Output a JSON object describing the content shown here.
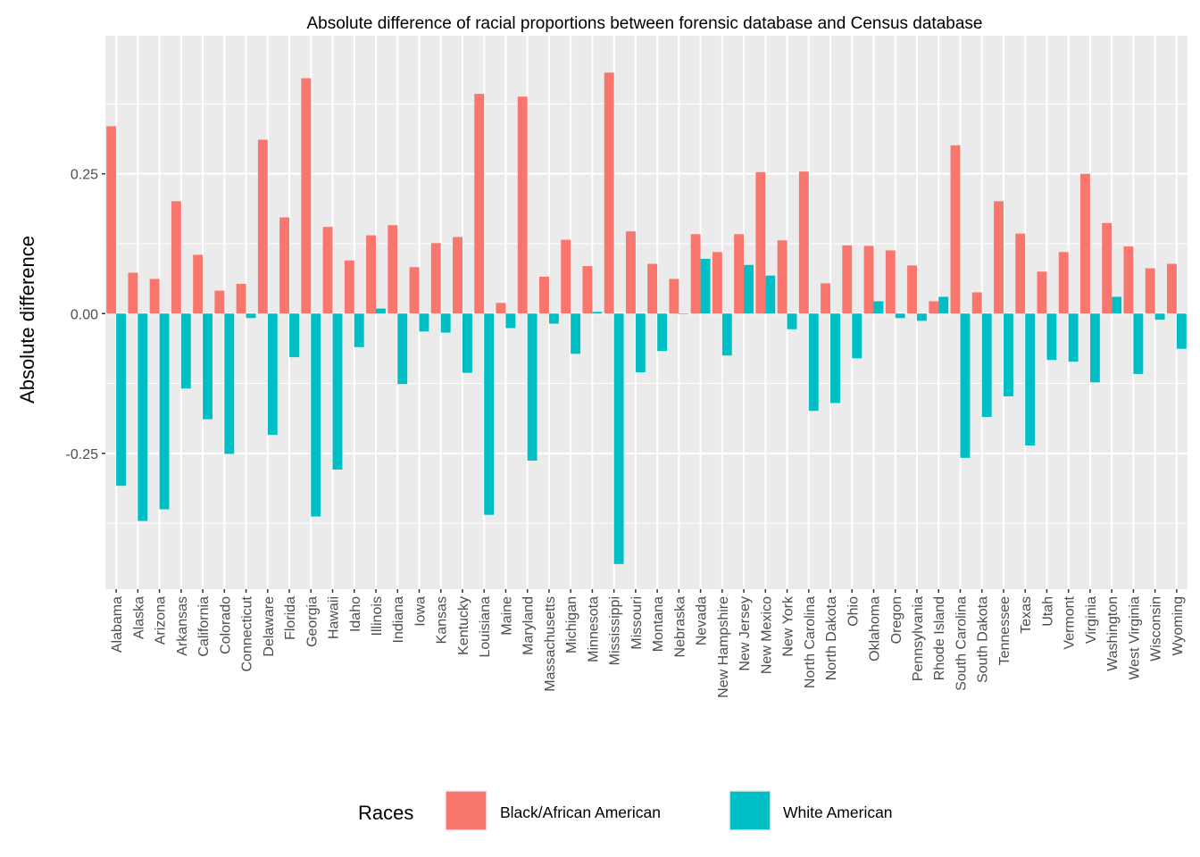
{
  "chart_data": {
    "type": "bar",
    "title": "Absolute difference of racial proportions between forensic database and Census database",
    "xlabel": "",
    "ylabel": "Absolute difference",
    "ylim": [
      -0.493,
      0.497
    ],
    "yticks": [
      -0.25,
      0.0,
      0.25
    ],
    "ytick_labels": [
      "-0.25",
      "0.00",
      "0.25"
    ],
    "grid": true,
    "legend": {
      "title": "Races",
      "position": "bottom"
    },
    "categories": [
      "Alabama",
      "Alaska",
      "Arizona",
      "Arkansas",
      "California",
      "Colorado",
      "Connecticut",
      "Delaware",
      "Florida",
      "Georgia",
      "Hawaii",
      "Idaho",
      "Illinois",
      "Indiana",
      "Iowa",
      "Kansas",
      "Kentucky",
      "Louisiana",
      "Maine",
      "Maryland",
      "Massachusetts",
      "Michigan",
      "Minnesota",
      "Mississippi",
      "Missouri",
      "Montana",
      "Nebraska",
      "Nevada",
      "New Hampshire",
      "New Jersey",
      "New Mexico",
      "New York",
      "North Carolina",
      "North Dakota",
      "Ohio",
      "Oklahoma",
      "Oregon",
      "Pennsylvania",
      "Rhode Island",
      "South Carolina",
      "South Dakota",
      "Tennessee",
      "Texas",
      "Utah",
      "Vermont",
      "Virginia",
      "Washington",
      "West Virginia",
      "Wisconsin",
      "Wyoming"
    ],
    "series": [
      {
        "name": "Black/African American",
        "color": "#F8766D",
        "values": [
          0.335,
          0.073,
          0.062,
          0.201,
          0.105,
          0.041,
          0.053,
          0.311,
          0.172,
          0.421,
          0.155,
          0.095,
          0.14,
          0.158,
          0.083,
          0.126,
          0.137,
          0.393,
          0.019,
          0.388,
          0.066,
          0.132,
          0.085,
          0.431,
          0.147,
          0.089,
          0.062,
          0.142,
          0.11,
          0.142,
          0.253,
          0.131,
          0.254,
          0.054,
          0.122,
          0.121,
          0.113,
          0.086,
          0.022,
          0.301,
          0.038,
          0.201,
          0.143,
          0.075,
          0.11,
          0.25,
          0.162,
          0.12,
          0.081,
          0.089
        ]
      },
      {
        "name": "White American",
        "color": "#00BFC4",
        "values": [
          -0.308,
          -0.371,
          -0.35,
          -0.134,
          -0.189,
          -0.251,
          -0.008,
          -0.217,
          -0.078,
          -0.363,
          -0.279,
          -0.06,
          0.009,
          -0.126,
          -0.032,
          -0.034,
          -0.106,
          -0.36,
          -0.026,
          -0.263,
          -0.018,
          -0.072,
          0.003,
          -0.448,
          -0.105,
          -0.067,
          -0.001,
          0.098,
          -0.075,
          0.087,
          0.068,
          -0.028,
          -0.174,
          -0.16,
          -0.08,
          0.022,
          -0.008,
          -0.013,
          0.03,
          -0.258,
          -0.185,
          -0.148,
          -0.236,
          -0.083,
          -0.086,
          -0.123,
          0.03,
          -0.108,
          -0.011,
          -0.063
        ]
      }
    ]
  }
}
